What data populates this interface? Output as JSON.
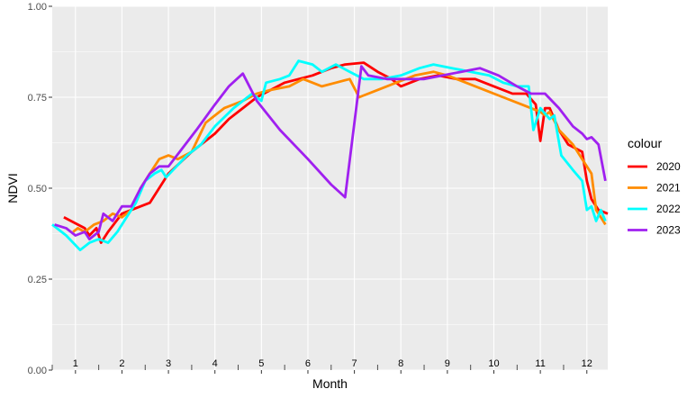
{
  "chart_data": {
    "type": "line",
    "xlabel": "Month",
    "ylabel": "NDVI",
    "xlim": [
      0.5,
      12.45
    ],
    "ylim": [
      0,
      1
    ],
    "y_ticks": [
      "0.00",
      "0.25",
      "0.50",
      "0.75",
      "1.00"
    ],
    "y_tick_values": [
      0,
      0.25,
      0.5,
      0.75,
      1.0
    ],
    "month_labels": [
      "1",
      "2",
      "3",
      "4",
      "5",
      "6",
      "7",
      "8",
      "9",
      "10",
      "11",
      "12"
    ],
    "grid": true,
    "legend": {
      "title": "colour",
      "position": "right"
    },
    "series": [
      {
        "name": "2020",
        "color": "#ff0000",
        "points": [
          [
            0.75,
            0.42
          ],
          [
            1.05,
            0.4
          ],
          [
            1.2,
            0.39
          ],
          [
            1.3,
            0.37
          ],
          [
            1.45,
            0.39
          ],
          [
            1.55,
            0.35
          ],
          [
            1.7,
            0.38
          ],
          [
            2.0,
            0.43
          ],
          [
            2.2,
            0.44
          ],
          [
            2.6,
            0.46
          ],
          [
            3.0,
            0.54
          ],
          [
            3.5,
            0.6
          ],
          [
            4.0,
            0.65
          ],
          [
            4.3,
            0.69
          ],
          [
            4.6,
            0.72
          ],
          [
            4.9,
            0.75
          ],
          [
            5.2,
            0.77
          ],
          [
            5.5,
            0.79
          ],
          [
            5.8,
            0.8
          ],
          [
            6.1,
            0.81
          ],
          [
            6.5,
            0.83
          ],
          [
            6.8,
            0.84
          ],
          [
            7.2,
            0.845
          ],
          [
            7.5,
            0.82
          ],
          [
            7.8,
            0.8
          ],
          [
            8.0,
            0.78
          ],
          [
            8.4,
            0.8
          ],
          [
            8.8,
            0.81
          ],
          [
            9.2,
            0.8
          ],
          [
            9.6,
            0.8
          ],
          [
            10.0,
            0.78
          ],
          [
            10.4,
            0.76
          ],
          [
            10.7,
            0.76
          ],
          [
            10.9,
            0.73
          ],
          [
            11.0,
            0.63
          ],
          [
            11.1,
            0.72
          ],
          [
            11.2,
            0.72
          ],
          [
            11.4,
            0.66
          ],
          [
            11.6,
            0.62
          ],
          [
            11.9,
            0.6
          ],
          [
            12.0,
            0.52
          ],
          [
            12.1,
            0.47
          ],
          [
            12.25,
            0.44
          ],
          [
            12.45,
            0.43
          ]
        ]
      },
      {
        "name": "2021",
        "color": "#ff8c00",
        "points": [
          [
            0.95,
            0.38
          ],
          [
            1.05,
            0.39
          ],
          [
            1.2,
            0.38
          ],
          [
            1.4,
            0.4
          ],
          [
            1.6,
            0.41
          ],
          [
            1.8,
            0.43
          ],
          [
            2.0,
            0.42
          ],
          [
            2.2,
            0.44
          ],
          [
            2.4,
            0.5
          ],
          [
            2.6,
            0.54
          ],
          [
            2.8,
            0.58
          ],
          [
            3.0,
            0.59
          ],
          [
            3.2,
            0.58
          ],
          [
            3.5,
            0.6
          ],
          [
            3.8,
            0.68
          ],
          [
            4.2,
            0.72
          ],
          [
            4.6,
            0.74
          ],
          [
            4.9,
            0.76
          ],
          [
            5.2,
            0.77
          ],
          [
            5.6,
            0.78
          ],
          [
            5.9,
            0.8
          ],
          [
            6.1,
            0.79
          ],
          [
            6.3,
            0.78
          ],
          [
            6.6,
            0.79
          ],
          [
            6.9,
            0.8
          ],
          [
            7.1,
            0.75
          ],
          [
            7.5,
            0.77
          ],
          [
            7.9,
            0.79
          ],
          [
            8.3,
            0.81
          ],
          [
            8.7,
            0.82
          ],
          [
            9.0,
            0.81
          ],
          [
            9.4,
            0.79
          ],
          [
            9.8,
            0.77
          ],
          [
            10.2,
            0.75
          ],
          [
            10.6,
            0.73
          ],
          [
            11.0,
            0.71
          ],
          [
            11.1,
            0.7
          ],
          [
            11.2,
            0.71
          ],
          [
            11.4,
            0.66
          ],
          [
            11.7,
            0.62
          ],
          [
            11.9,
            0.58
          ],
          [
            12.1,
            0.54
          ],
          [
            12.2,
            0.44
          ],
          [
            12.3,
            0.42
          ],
          [
            12.4,
            0.4
          ]
        ]
      },
      {
        "name": "2022",
        "color": "#00ffff",
        "points": [
          [
            0.5,
            0.4
          ],
          [
            0.8,
            0.37
          ],
          [
            1.1,
            0.33
          ],
          [
            1.3,
            0.35
          ],
          [
            1.5,
            0.36
          ],
          [
            1.7,
            0.35
          ],
          [
            1.9,
            0.38
          ],
          [
            2.1,
            0.42
          ],
          [
            2.3,
            0.46
          ],
          [
            2.5,
            0.52
          ],
          [
            2.7,
            0.54
          ],
          [
            2.85,
            0.55
          ],
          [
            2.95,
            0.53
          ],
          [
            3.1,
            0.55
          ],
          [
            3.4,
            0.59
          ],
          [
            3.7,
            0.62
          ],
          [
            4.0,
            0.67
          ],
          [
            4.4,
            0.72
          ],
          [
            4.8,
            0.76
          ],
          [
            5.0,
            0.74
          ],
          [
            5.1,
            0.79
          ],
          [
            5.4,
            0.8
          ],
          [
            5.6,
            0.81
          ],
          [
            5.8,
            0.85
          ],
          [
            6.1,
            0.84
          ],
          [
            6.3,
            0.82
          ],
          [
            6.6,
            0.84
          ],
          [
            6.9,
            0.82
          ],
          [
            7.2,
            0.8
          ],
          [
            7.6,
            0.8
          ],
          [
            8.0,
            0.81
          ],
          [
            8.4,
            0.83
          ],
          [
            8.7,
            0.84
          ],
          [
            9.1,
            0.83
          ],
          [
            9.5,
            0.82
          ],
          [
            9.9,
            0.81
          ],
          [
            10.2,
            0.79
          ],
          [
            10.5,
            0.78
          ],
          [
            10.75,
            0.78
          ],
          [
            10.85,
            0.66
          ],
          [
            11.0,
            0.72
          ],
          [
            11.2,
            0.69
          ],
          [
            11.3,
            0.7
          ],
          [
            11.45,
            0.59
          ],
          [
            11.7,
            0.55
          ],
          [
            11.9,
            0.52
          ],
          [
            12.0,
            0.44
          ],
          [
            12.1,
            0.45
          ],
          [
            12.2,
            0.41
          ],
          [
            12.3,
            0.44
          ],
          [
            12.4,
            0.41
          ]
        ]
      },
      {
        "name": "2023",
        "color": "#a020f0",
        "points": [
          [
            0.55,
            0.4
          ],
          [
            0.8,
            0.39
          ],
          [
            1.0,
            0.37
          ],
          [
            1.2,
            0.38
          ],
          [
            1.3,
            0.36
          ],
          [
            1.5,
            0.38
          ],
          [
            1.6,
            0.43
          ],
          [
            1.8,
            0.41
          ],
          [
            2.0,
            0.45
          ],
          [
            2.2,
            0.45
          ],
          [
            2.4,
            0.5
          ],
          [
            2.6,
            0.54
          ],
          [
            2.8,
            0.56
          ],
          [
            3.0,
            0.56
          ],
          [
            3.3,
            0.61
          ],
          [
            3.6,
            0.66
          ],
          [
            4.0,
            0.73
          ],
          [
            4.3,
            0.78
          ],
          [
            4.6,
            0.815
          ],
          [
            4.9,
            0.74
          ],
          [
            5.4,
            0.66
          ],
          [
            6.0,
            0.58
          ],
          [
            6.5,
            0.51
          ],
          [
            6.8,
            0.475
          ],
          [
            7.15,
            0.835
          ],
          [
            7.3,
            0.81
          ],
          [
            7.7,
            0.8
          ],
          [
            8.1,
            0.8
          ],
          [
            8.5,
            0.8
          ],
          [
            8.9,
            0.81
          ],
          [
            9.3,
            0.82
          ],
          [
            9.7,
            0.83
          ],
          [
            10.1,
            0.81
          ],
          [
            10.5,
            0.78
          ],
          [
            10.8,
            0.76
          ],
          [
            11.1,
            0.76
          ],
          [
            11.4,
            0.72
          ],
          [
            11.7,
            0.67
          ],
          [
            11.9,
            0.65
          ],
          [
            12.0,
            0.635
          ],
          [
            12.1,
            0.64
          ],
          [
            12.25,
            0.62
          ],
          [
            12.4,
            0.52
          ]
        ]
      }
    ]
  }
}
